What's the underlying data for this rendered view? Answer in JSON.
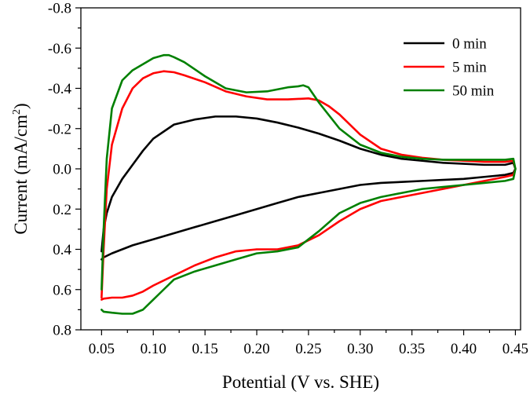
{
  "chart_data": {
    "type": "line",
    "title": "",
    "xlabel": "Potential (V vs. SHE)",
    "ylabel": "Current (mA/cm",
    "ylabel_sup": "2",
    "ylabel_close": ")",
    "xlim": [
      0.03,
      0.455
    ],
    "ylim": [
      -0.8,
      0.8
    ],
    "y_inverted": true,
    "x_ticks": [
      0.05,
      0.1,
      0.15,
      0.2,
      0.25,
      0.3,
      0.35,
      0.4,
      0.45
    ],
    "x_tick_labels": [
      "0.05",
      "0.10",
      "0.15",
      "0.20",
      "0.25",
      "0.30",
      "0.35",
      "0.40",
      "0.45"
    ],
    "y_ticks": [
      -0.8,
      -0.6,
      -0.4,
      -0.2,
      0.0,
      0.2,
      0.4,
      0.6,
      0.8
    ],
    "y_tick_labels": [
      "-0.8",
      "-0.6",
      "-0.4",
      "-0.2",
      "0.0",
      "0.2",
      "0.4",
      "0.6",
      "0.8"
    ],
    "grid": false,
    "legend_position": "top-right",
    "series": [
      {
        "name": "0 min",
        "color": "#000000",
        "x": [
          0.05,
          0.052,
          0.055,
          0.06,
          0.07,
          0.08,
          0.09,
          0.1,
          0.12,
          0.14,
          0.16,
          0.18,
          0.2,
          0.22,
          0.24,
          0.26,
          0.28,
          0.3,
          0.32,
          0.34,
          0.36,
          0.38,
          0.4,
          0.42,
          0.44,
          0.448,
          0.45,
          0.448,
          0.44,
          0.42,
          0.4,
          0.38,
          0.36,
          0.34,
          0.32,
          0.3,
          0.28,
          0.26,
          0.24,
          0.22,
          0.2,
          0.18,
          0.16,
          0.14,
          0.12,
          0.1,
          0.08,
          0.06,
          0.052,
          0.05
        ],
        "y": [
          0.41,
          0.3,
          0.22,
          0.14,
          0.05,
          -0.02,
          -0.09,
          -0.15,
          -0.22,
          -0.245,
          -0.26,
          -0.26,
          -0.25,
          -0.23,
          -0.205,
          -0.175,
          -0.14,
          -0.1,
          -0.07,
          -0.05,
          -0.04,
          -0.03,
          -0.025,
          -0.02,
          -0.02,
          -0.03,
          0.0,
          0.02,
          0.03,
          0.04,
          0.05,
          0.055,
          0.06,
          0.065,
          0.07,
          0.08,
          0.1,
          0.12,
          0.14,
          0.17,
          0.2,
          0.23,
          0.26,
          0.29,
          0.32,
          0.35,
          0.38,
          0.42,
          0.44,
          0.45
        ]
      },
      {
        "name": "5 min",
        "color": "#ff0000",
        "x": [
          0.05,
          0.052,
          0.055,
          0.06,
          0.07,
          0.08,
          0.09,
          0.1,
          0.11,
          0.12,
          0.13,
          0.15,
          0.17,
          0.19,
          0.21,
          0.23,
          0.25,
          0.26,
          0.27,
          0.28,
          0.3,
          0.32,
          0.34,
          0.36,
          0.38,
          0.4,
          0.42,
          0.44,
          0.448,
          0.45,
          0.448,
          0.44,
          0.42,
          0.4,
          0.38,
          0.36,
          0.34,
          0.32,
          0.3,
          0.28,
          0.26,
          0.24,
          0.22,
          0.2,
          0.18,
          0.16,
          0.14,
          0.12,
          0.1,
          0.09,
          0.08,
          0.07,
          0.06,
          0.052,
          0.05
        ],
        "y": [
          0.64,
          0.4,
          0.1,
          -0.12,
          -0.3,
          -0.4,
          -0.45,
          -0.475,
          -0.485,
          -0.48,
          -0.465,
          -0.43,
          -0.385,
          -0.36,
          -0.345,
          -0.345,
          -0.35,
          -0.34,
          -0.31,
          -0.27,
          -0.17,
          -0.1,
          -0.07,
          -0.055,
          -0.045,
          -0.04,
          -0.035,
          -0.035,
          -0.04,
          0.0,
          0.03,
          0.04,
          0.06,
          0.08,
          0.1,
          0.12,
          0.14,
          0.16,
          0.2,
          0.26,
          0.33,
          0.38,
          0.4,
          0.4,
          0.41,
          0.44,
          0.48,
          0.53,
          0.58,
          0.61,
          0.63,
          0.64,
          0.64,
          0.645,
          0.65
        ]
      },
      {
        "name": "50 min",
        "color": "#008000",
        "x": [
          0.05,
          0.052,
          0.055,
          0.06,
          0.07,
          0.08,
          0.09,
          0.1,
          0.11,
          0.115,
          0.12,
          0.13,
          0.15,
          0.17,
          0.19,
          0.21,
          0.23,
          0.24,
          0.245,
          0.25,
          0.26,
          0.28,
          0.3,
          0.32,
          0.34,
          0.36,
          0.38,
          0.4,
          0.42,
          0.44,
          0.448,
          0.45,
          0.448,
          0.44,
          0.42,
          0.4,
          0.38,
          0.36,
          0.34,
          0.32,
          0.3,
          0.28,
          0.26,
          0.24,
          0.22,
          0.2,
          0.18,
          0.16,
          0.14,
          0.12,
          0.11,
          0.1,
          0.09,
          0.08,
          0.07,
          0.06,
          0.052,
          0.05
        ],
        "y": [
          0.6,
          0.3,
          -0.05,
          -0.3,
          -0.44,
          -0.49,
          -0.52,
          -0.55,
          -0.565,
          -0.565,
          -0.555,
          -0.53,
          -0.46,
          -0.4,
          -0.38,
          -0.385,
          -0.405,
          -0.41,
          -0.415,
          -0.405,
          -0.33,
          -0.2,
          -0.12,
          -0.08,
          -0.06,
          -0.05,
          -0.045,
          -0.045,
          -0.045,
          -0.045,
          -0.05,
          0.0,
          0.05,
          0.06,
          0.07,
          0.08,
          0.09,
          0.1,
          0.12,
          0.14,
          0.17,
          0.22,
          0.31,
          0.39,
          0.41,
          0.42,
          0.45,
          0.48,
          0.51,
          0.55,
          0.6,
          0.65,
          0.7,
          0.72,
          0.72,
          0.715,
          0.71,
          0.7
        ]
      }
    ]
  }
}
